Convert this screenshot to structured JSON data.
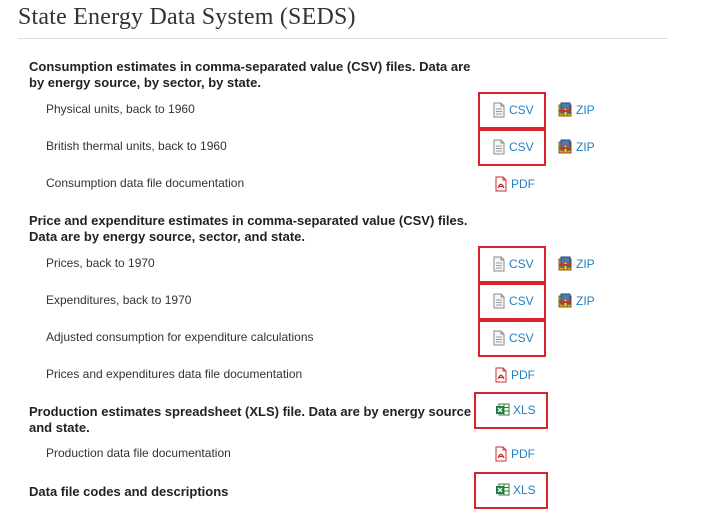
{
  "page": {
    "title": "State Energy Data System (SEDS)"
  },
  "sections": [
    {
      "heading": "Consumption estimates in comma-separated value (CSV) files. Data are by energy source, by sector, by state.",
      "rows": [
        {
          "label": "Physical units, back to 1960",
          "links": [
            {
              "type": "csv",
              "text": "CSV"
            },
            {
              "type": "zip",
              "text": "ZIP"
            }
          ]
        },
        {
          "label": "British thermal units, back to 1960",
          "links": [
            {
              "type": "csv",
              "text": "CSV"
            },
            {
              "type": "zip",
              "text": "ZIP"
            }
          ]
        },
        {
          "label": "Consumption data file documentation",
          "links": [
            {
              "type": "pdf",
              "text": "PDF"
            }
          ]
        }
      ]
    },
    {
      "heading": "Price and expenditure estimates in comma-separated value (CSV) files. Data are by energy source, sector, and state.",
      "rows": [
        {
          "label": "Prices, back to 1970",
          "links": [
            {
              "type": "csv",
              "text": "CSV"
            },
            {
              "type": "zip",
              "text": "ZIP"
            }
          ]
        },
        {
          "label": "Expenditures, back to 1970",
          "links": [
            {
              "type": "csv",
              "text": "CSV"
            },
            {
              "type": "zip",
              "text": "ZIP"
            }
          ]
        },
        {
          "label": "Adjusted consumption for expenditure calculations",
          "links": [
            {
              "type": "csv",
              "text": "CSV"
            }
          ]
        },
        {
          "label": "Prices and expenditures data file documentation",
          "links": [
            {
              "type": "pdf",
              "text": "PDF"
            }
          ]
        }
      ]
    },
    {
      "heading": "Production estimates spreadsheet (XLS) file. Data are by energy source and state.",
      "heading_link": {
        "type": "xls",
        "text": "XLS"
      },
      "rows": [
        {
          "label": "Production data file documentation",
          "links": [
            {
              "type": "pdf",
              "text": "PDF"
            }
          ]
        }
      ]
    },
    {
      "heading": "Data file codes and descriptions",
      "heading_link": {
        "type": "xls",
        "text": "XLS"
      },
      "rows": []
    }
  ],
  "colors": {
    "link": "#1f7fc4",
    "highlight": "#d9232d",
    "text": "#333333"
  },
  "icons": {
    "csv": "document-icon",
    "zip": "archive-icon",
    "pdf": "pdf-icon",
    "xls": "excel-icon"
  }
}
